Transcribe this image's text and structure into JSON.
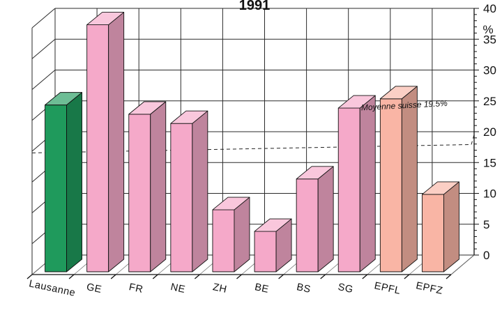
{
  "chart_data": {
    "type": "bar",
    "style": "3d",
    "title": "1991",
    "xlabel": "",
    "ylabel": "%",
    "ylim": [
      0,
      40
    ],
    "yticks": [
      0,
      5,
      10,
      15,
      20,
      25,
      30,
      35,
      40
    ],
    "categories": [
      "Lausanne",
      "GE",
      "FR",
      "NE",
      "ZH",
      "BE",
      "BS",
      "SG",
      "EPFL",
      "EPFZ"
    ],
    "values": [
      27.5,
      40.5,
      26,
      24.5,
      10.5,
      7,
      15.5,
      27,
      28.5,
      13
    ],
    "colors": [
      "#1f9a5c",
      "#f5a9c9",
      "#f5a9c9",
      "#f5a9c9",
      "#f5a9c9",
      "#f5a9c9",
      "#f5a9c9",
      "#f5a9c9",
      "#f9b5a5",
      "#f9b5a5"
    ],
    "reference_line": {
      "label": "Moyenne suisse 19.5%",
      "value": 19.5
    },
    "grid": true
  }
}
